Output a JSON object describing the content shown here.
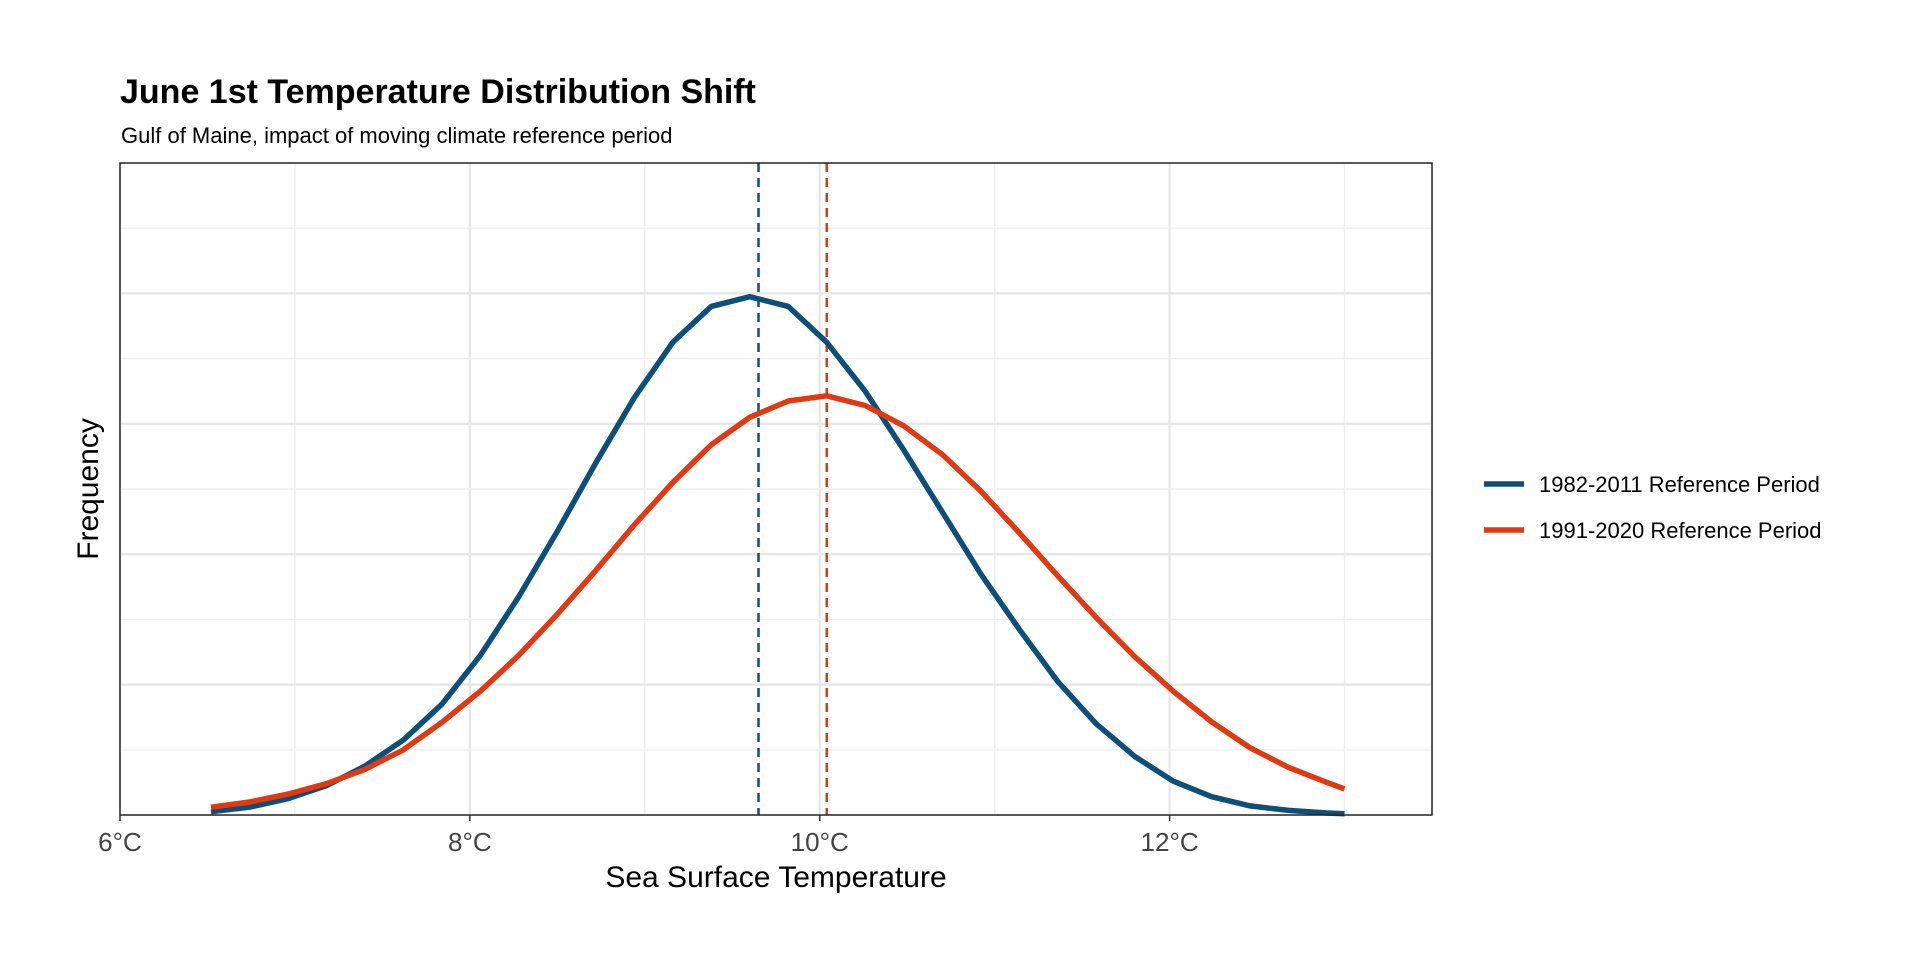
{
  "chart_data": {
    "type": "line",
    "title": "June 1st Temperature Distribution Shift",
    "subtitle": "Gulf of Maine, impact of moving climate reference period",
    "xlabel": "Sea Surface Temperature",
    "ylabel": "Frequency",
    "xlim": [
      6.0,
      13.5
    ],
    "ylim": [
      0,
      1.0
    ],
    "x_ticks": [
      6,
      8,
      10,
      12
    ],
    "x_tick_labels": [
      "6°C",
      "8°C",
      "10°C",
      "12°C"
    ],
    "grid": true,
    "legend_position": "right",
    "series": [
      {
        "name": "1982-2011 Reference Period",
        "color": "#0d4f7a",
        "mean": 9.65,
        "x": [
          6.52,
          6.74,
          6.96,
          7.18,
          7.4,
          7.62,
          7.84,
          8.06,
          8.28,
          8.5,
          8.72,
          8.94,
          9.16,
          9.38,
          9.6,
          9.82,
          10.04,
          10.26,
          10.48,
          10.7,
          10.92,
          11.14,
          11.36,
          11.58,
          11.8,
          12.02,
          12.24,
          12.46,
          12.68,
          12.9,
          13.0
        ],
        "y": [
          0.005,
          0.012,
          0.025,
          0.045,
          0.075,
          0.115,
          0.17,
          0.245,
          0.335,
          0.435,
          0.54,
          0.64,
          0.725,
          0.78,
          0.795,
          0.78,
          0.725,
          0.65,
          0.56,
          0.465,
          0.37,
          0.285,
          0.205,
          0.14,
          0.09,
          0.052,
          0.028,
          0.014,
          0.007,
          0.003,
          0.002
        ]
      },
      {
        "name": "1991-2020 Reference Period",
        "color": "#e03a12",
        "mean": 10.04,
        "x": [
          6.52,
          6.74,
          6.96,
          7.18,
          7.4,
          7.62,
          7.84,
          8.06,
          8.28,
          8.5,
          8.72,
          8.94,
          9.16,
          9.38,
          9.6,
          9.82,
          10.04,
          10.26,
          10.48,
          10.7,
          10.92,
          11.14,
          11.36,
          11.58,
          11.8,
          12.02,
          12.24,
          12.46,
          12.68,
          12.9,
          13.0
        ],
        "y": [
          0.012,
          0.02,
          0.032,
          0.048,
          0.07,
          0.1,
          0.142,
          0.19,
          0.245,
          0.308,
          0.375,
          0.445,
          0.51,
          0.568,
          0.61,
          0.635,
          0.643,
          0.628,
          0.597,
          0.553,
          0.497,
          0.433,
          0.367,
          0.303,
          0.243,
          0.19,
          0.143,
          0.103,
          0.073,
          0.05,
          0.04
        ]
      }
    ]
  }
}
